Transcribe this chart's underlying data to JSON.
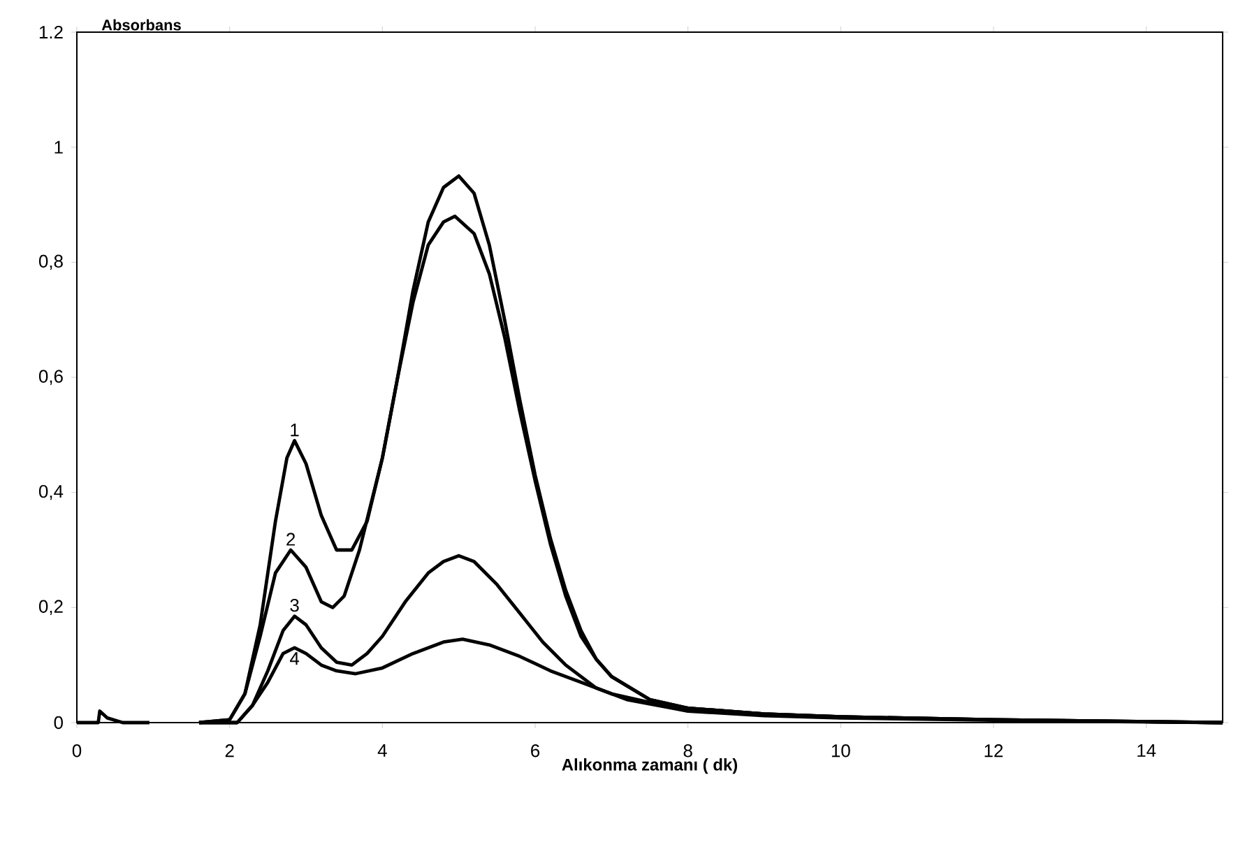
{
  "chart_data": {
    "type": "line",
    "xlabel": "Alıkonma zamanı ( dk)",
    "ylabel": "Absorbans",
    "xlim": [
      0,
      15
    ],
    "ylim": [
      0,
      1.2
    ],
    "xticks": [
      0,
      2,
      4,
      6,
      8,
      10,
      12,
      14
    ],
    "yticks": [
      0,
      {
        "value": 0.2,
        "label": "0,2"
      },
      {
        "value": 0.4,
        "label": "0,4"
      },
      {
        "value": 0.6,
        "label": "0,6"
      },
      {
        "value": 0.8,
        "label": "0,8"
      },
      1,
      {
        "value": 1.2,
        "label": "1.2"
      }
    ],
    "marker": "none",
    "line_style": "solid",
    "series": [
      {
        "name": "1",
        "color": "#000000",
        "x": [
          0,
          0.28,
          0.3,
          0.4,
          0.6,
          0.95,
          1.3,
          1.6,
          2.0,
          2.2,
          2.4,
          2.6,
          2.75,
          2.85,
          3.0,
          3.2,
          3.4,
          3.6,
          3.8,
          4.0,
          4.2,
          4.4,
          4.6,
          4.8,
          5.0,
          5.2,
          5.4,
          5.6,
          5.8,
          6.0,
          6.2,
          6.4,
          6.6,
          6.8,
          7.0,
          7.5,
          8,
          9,
          10,
          12,
          15
        ],
        "values": [
          0,
          0,
          0.02,
          0.008,
          0,
          0,
          null,
          0,
          0.005,
          0.05,
          0.17,
          0.35,
          0.46,
          0.49,
          0.45,
          0.36,
          0.3,
          0.3,
          0.35,
          0.46,
          0.6,
          0.75,
          0.87,
          0.93,
          0.95,
          0.92,
          0.83,
          0.7,
          0.56,
          0.43,
          0.32,
          0.23,
          0.16,
          0.11,
          0.08,
          0.04,
          0.025,
          0.015,
          0.01,
          0.005,
          0
        ]
      },
      {
        "name": "2",
        "color": "#010101",
        "x": [
          1.6,
          2.0,
          2.2,
          2.4,
          2.6,
          2.8,
          3.0,
          3.2,
          3.35,
          3.5,
          3.7,
          4.0,
          4.2,
          4.4,
          4.6,
          4.8,
          4.95,
          5.2,
          5.4,
          5.6,
          5.8,
          6.0,
          6.2,
          6.4,
          6.6,
          6.8,
          7.0,
          7.5,
          8,
          9,
          10,
          12,
          15
        ],
        "values": [
          0,
          0.005,
          0.05,
          0.15,
          0.26,
          0.3,
          0.27,
          0.21,
          0.2,
          0.22,
          0.3,
          0.46,
          0.6,
          0.73,
          0.83,
          0.87,
          0.88,
          0.85,
          0.78,
          0.67,
          0.54,
          0.42,
          0.31,
          0.22,
          0.15,
          0.11,
          0.08,
          0.04,
          0.025,
          0.015,
          0.01,
          0.005,
          0
        ]
      },
      {
        "name": "3",
        "color": "#020202",
        "x": [
          1.6,
          2.1,
          2.3,
          2.5,
          2.7,
          2.85,
          3.0,
          3.2,
          3.4,
          3.6,
          3.8,
          4.0,
          4.3,
          4.6,
          4.8,
          5.0,
          5.2,
          5.5,
          5.8,
          6.1,
          6.4,
          6.8,
          7.2,
          8,
          9,
          10,
          12,
          15
        ],
        "values": [
          0,
          0,
          0.03,
          0.09,
          0.16,
          0.185,
          0.17,
          0.13,
          0.105,
          0.1,
          0.12,
          0.15,
          0.21,
          0.26,
          0.28,
          0.29,
          0.28,
          0.24,
          0.19,
          0.14,
          0.1,
          0.06,
          0.04,
          0.02,
          0.012,
          0.008,
          0.004,
          0
        ]
      },
      {
        "name": "4",
        "color": "#030303",
        "x": [
          1.6,
          2.1,
          2.3,
          2.5,
          2.7,
          2.85,
          3.0,
          3.2,
          3.4,
          3.65,
          4.0,
          4.4,
          4.8,
          5.05,
          5.4,
          5.8,
          6.2,
          6.6,
          7.0,
          7.5,
          8,
          9,
          10,
          12,
          15
        ],
        "values": [
          0,
          0,
          0.03,
          0.07,
          0.12,
          0.13,
          0.12,
          0.1,
          0.09,
          0.085,
          0.095,
          0.12,
          0.14,
          0.145,
          0.135,
          0.115,
          0.09,
          0.07,
          0.05,
          0.035,
          0.025,
          0.015,
          0.01,
          0.005,
          0
        ]
      }
    ]
  }
}
